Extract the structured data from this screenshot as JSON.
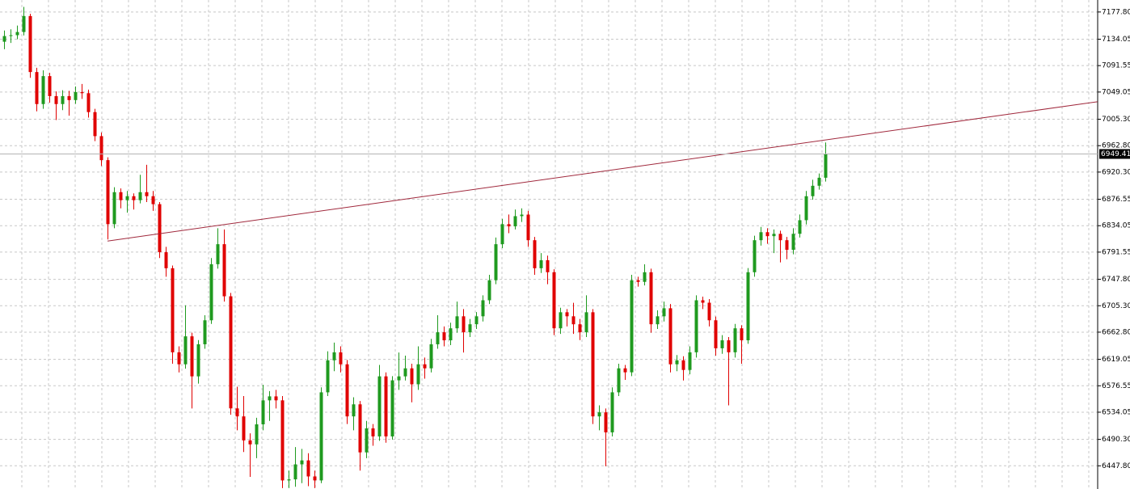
{
  "chart_data": {
    "type": "candlestick",
    "up_color": "#1f9a1f",
    "down_color": "#e00000",
    "grid": true,
    "ylim": [
      6410.5,
      7197.1
    ],
    "yticks": [
      {
        "value": 7177.8,
        "label": "7177.80"
      },
      {
        "value": 7134.05,
        "label": "7134.05"
      },
      {
        "value": 7091.55,
        "label": "7091.55"
      },
      {
        "value": 7049.05,
        "label": "7049.05"
      },
      {
        "value": 7005.3,
        "label": "7005.30"
      },
      {
        "value": 6962.8,
        "label": "6962.80"
      },
      {
        "value": 6920.3,
        "label": "6920.30"
      },
      {
        "value": 6876.55,
        "label": "6876.55"
      },
      {
        "value": 6834.05,
        "label": "6834.05"
      },
      {
        "value": 6791.55,
        "label": "6791.55"
      },
      {
        "value": 6747.8,
        "label": "6747.80"
      },
      {
        "value": 6705.3,
        "label": "6705.30"
      },
      {
        "value": 6662.8,
        "label": "6662.80"
      },
      {
        "value": 6619.05,
        "label": "6619.05"
      },
      {
        "value": 6576.55,
        "label": "6576.55"
      },
      {
        "value": 6534.05,
        "label": "6534.05"
      },
      {
        "value": 6490.3,
        "label": "6490.30"
      },
      {
        "value": 6447.8,
        "label": "6447.80"
      }
    ],
    "open": [
      7130.0,
      7139.1,
      7140.5,
      7145.6,
      7171.3,
      7081.2,
      7029.7,
      7074.7,
      7042.5,
      7029.7,
      7042.5,
      7036.1,
      7049.0,
      7047.2,
      7016.8,
      6978.1,
      6939.5,
      6836.5,
      6888.0,
      6875.1,
      6881.5,
      6875.1,
      6888.0,
      6881.5,
      6868.7,
      6791.4,
      6765.6,
      6630.4,
      6611.1,
      6656.1,
      6591.7,
      6643.3,
      6681.9,
      6772.1,
      6804.3,
      6720.5,
      6540.2,
      6527.3,
      6488.7,
      6482.3,
      6514.5,
      6553.1,
      6559.5,
      6553.1,
      6424.3,
      6426.0,
      6450.1,
      6456.5,
      6430.7,
      6424.3,
      6566.0,
      6617.5,
      6630.4,
      6611.1,
      6527.3,
      6546.7,
      6469.4,
      6508.0,
      6495.1,
      6591.7,
      6495.1,
      6585.3,
      6591.7,
      6604.6,
      6578.9,
      6611.1,
      6604.6,
      6643.3,
      6662.6,
      6649.7,
      6669.0,
      6688.3,
      6662.6,
      6675.5,
      6688.3,
      6714.1,
      6746.3,
      6804.3,
      6836.5,
      6833.0,
      6849.4,
      6851.9,
      6810.7,
      6765.6,
      6778.5,
      6759.2,
      6669.0,
      6694.8,
      6688.3,
      6675.5,
      6662.6,
      6694.8,
      6527.3,
      6533.8,
      6501.6,
      6566.0,
      6604.6,
      6598.2,
      6746.3,
      6743.7,
      6759.2,
      6675.5,
      6688.3,
      6701.2,
      6611.1,
      6617.5,
      6602.0,
      6630.4,
      6714.1,
      6710.2,
      6681.9,
      6636.8,
      6649.7,
      6630.4,
      6669.0,
      6649.7,
      6759.2,
      6810.7,
      6823.6,
      6817.2,
      6821.0,
      6810.7,
      6795.2,
      6821.0,
      6842.9,
      6881.5,
      6898.3,
      6911.2
    ],
    "high": [
      7148,
      7150,
      7156,
      7186,
      7175,
      7088,
      7084,
      7080,
      7050,
      7052,
      7051,
      7058,
      7062,
      7053,
      7022,
      6984,
      6944,
      6896,
      6894,
      6890,
      6886,
      6916,
      6932,
      6890,
      6872,
      6800,
      6770,
      6640,
      6706,
      6662,
      6650,
      6690,
      6782,
      6830,
      6828,
      6726,
      6575,
      6560,
      6500,
      6525,
      6578,
      6568,
      6570,
      6560,
      6440,
      6478,
      6475,
      6468,
      6440,
      6574,
      6632,
      6646,
      6640,
      6618,
      6558,
      6552,
      6520,
      6515,
      6610,
      6598,
      6592,
      6630,
      6625,
      6612,
      6640,
      6622,
      6652,
      6690,
      6672,
      6678,
      6712,
      6700,
      6684,
      6695,
      6722,
      6755,
      6815,
      6845,
      6852,
      6860,
      6862,
      6858,
      6816,
      6790,
      6786,
      6764,
      6702,
      6700,
      6710,
      6684,
      6722,
      6700,
      6545,
      6540,
      6574,
      6612,
      6610,
      6755,
      6752,
      6772,
      6765,
      6698,
      6712,
      6708,
      6626,
      6624,
      6640,
      6722,
      6720,
      6716,
      6688,
      6658,
      6655,
      6676,
      6674,
      6766,
      6818,
      6832,
      6830,
      6828,
      6826,
      6816,
      6830,
      6852,
      6890,
      6908,
      6918,
      6968
    ],
    "low": [
      7118,
      7128,
      7134,
      7140,
      7072,
      7018,
      7022,
      7032,
      7004,
      7020,
      7011,
      7030,
      7038,
      7008,
      6970,
      6930,
      6812,
      6830,
      6862,
      6855,
      6860,
      6870,
      6872,
      6858,
      6782,
      6752,
      6612,
      6598,
      6604,
      6540,
      6580,
      6636,
      6676,
      6765,
      6712,
      6530,
      6505,
      6470,
      6430,
      6460,
      6505,
      6520,
      6540,
      6412,
      6412,
      6414,
      6420,
      6415,
      6412,
      6420,
      6560,
      6600,
      6598,
      6515,
      6505,
      6440,
      6460,
      6480,
      6488,
      6485,
      6490,
      6570,
      6585,
      6550,
      6570,
      6588,
      6598,
      6636,
      6640,
      6642,
      6662,
      6630,
      6655,
      6668,
      6680,
      6708,
      6740,
      6798,
      6822,
      6828,
      6840,
      6800,
      6755,
      6758,
      6740,
      6658,
      6660,
      6672,
      6660,
      6650,
      6655,
      6515,
      6505,
      6447,
      6495,
      6560,
      6586,
      6592,
      6736,
      6738,
      6662,
      6668,
      6680,
      6598,
      6600,
      6585,
      6595,
      6622,
      6700,
      6672,
      6625,
      6628,
      6545,
      6622,
      6612,
      6644,
      6752,
      6802,
      6805,
      6790,
      6775,
      6780,
      6788,
      6815,
      6836,
      6876,
      6892,
      6905
    ],
    "close": [
      7139.1,
      7140.5,
      7145.6,
      7171.3,
      7081.2,
      7029.7,
      7074.7,
      7042.5,
      7029.7,
      7042.5,
      7036.1,
      7049.0,
      7047.2,
      7016.8,
      6978.1,
      6939.5,
      6836.5,
      6888.0,
      6875.1,
      6881.5,
      6875.1,
      6888.0,
      6881.5,
      6868.7,
      6791.4,
      6765.6,
      6630.4,
      6611.1,
      6656.1,
      6591.7,
      6643.3,
      6681.9,
      6772.1,
      6804.3,
      6720.5,
      6540.2,
      6527.3,
      6488.7,
      6482.3,
      6514.5,
      6553.1,
      6559.5,
      6553.1,
      6424.3,
      6426.0,
      6450.1,
      6456.5,
      6430.7,
      6424.3,
      6566.0,
      6617.5,
      6630.4,
      6611.1,
      6527.3,
      6546.7,
      6469.4,
      6508.0,
      6495.1,
      6591.7,
      6495.1,
      6585.3,
      6591.7,
      6604.6,
      6578.9,
      6611.1,
      6604.6,
      6643.3,
      6662.6,
      6649.7,
      6669.0,
      6688.3,
      6662.6,
      6675.5,
      6688.3,
      6714.1,
      6746.3,
      6804.3,
      6836.5,
      6833.0,
      6849.4,
      6851.9,
      6810.7,
      6765.6,
      6778.5,
      6759.2,
      6669.0,
      6694.8,
      6688.3,
      6675.5,
      6662.6,
      6694.8,
      6527.3,
      6533.8,
      6501.6,
      6566.0,
      6604.6,
      6598.2,
      6746.3,
      6743.7,
      6759.2,
      6675.5,
      6688.3,
      6701.2,
      6611.1,
      6617.5,
      6602.0,
      6630.4,
      6714.1,
      6710.2,
      6681.9,
      6636.8,
      6649.7,
      6630.4,
      6669.0,
      6649.7,
      6759.2,
      6810.7,
      6823.6,
      6817.2,
      6821.0,
      6810.7,
      6795.2,
      6821.0,
      6842.9,
      6881.5,
      6898.3,
      6911.2,
      6949.41
    ],
    "trendline": {
      "x": [
        16,
        169.1
      ],
      "y": [
        6809.4,
        7033.5
      ],
      "color": "#a0283c"
    }
  }
}
